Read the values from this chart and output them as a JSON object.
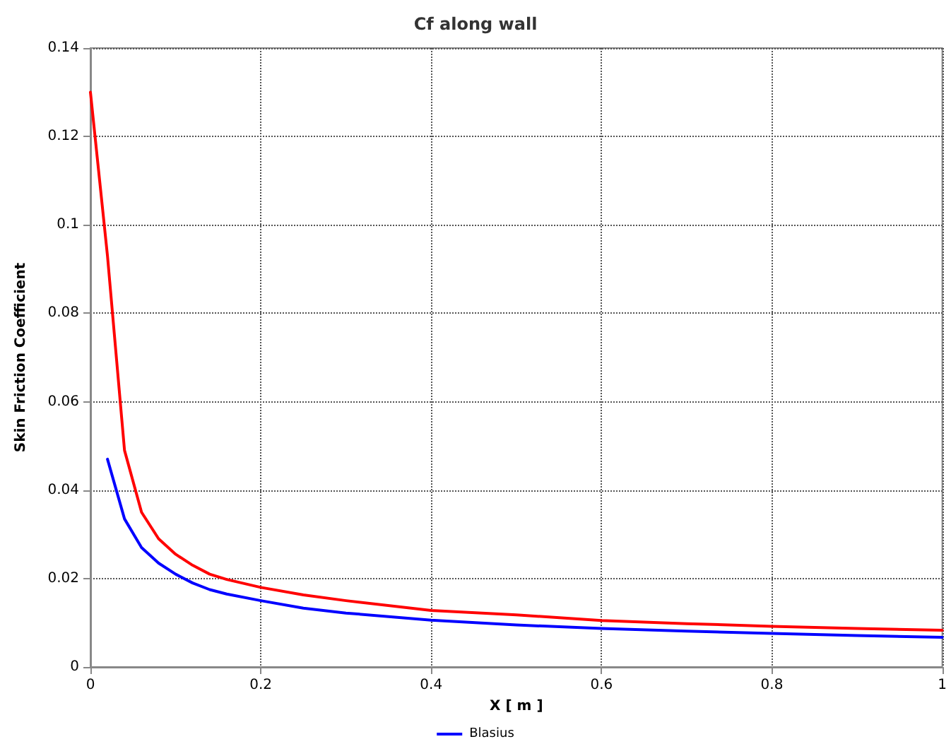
{
  "chart_data": {
    "type": "line",
    "title": "Cf along wall",
    "xlabel": "X [ m ]",
    "ylabel": "Skin Friction Coefficient",
    "series": [
      {
        "color": "#ff0000",
        "x": [
          0,
          0.02,
          0.04,
          0.06,
          0.08,
          0.1,
          0.12,
          0.14,
          0.16,
          0.2,
          0.25,
          0.3,
          0.4,
          0.5,
          0.6,
          0.7,
          0.8,
          0.9,
          1.0
        ],
        "values": [
          0.13,
          0.093,
          0.049,
          0.035,
          0.029,
          0.0255,
          0.023,
          0.021,
          0.0198,
          0.018,
          0.0163,
          0.015,
          0.0128,
          0.0118,
          0.0105,
          0.0098,
          0.0092,
          0.0087,
          0.0083
        ]
      },
      {
        "name": "Blasius",
        "color": "#0000ff",
        "x": [
          0.02,
          0.04,
          0.06,
          0.08,
          0.1,
          0.12,
          0.14,
          0.16,
          0.2,
          0.25,
          0.3,
          0.4,
          0.5,
          0.6,
          0.7,
          0.8,
          0.9,
          1.0
        ],
        "values": [
          0.047,
          0.0335,
          0.027,
          0.0235,
          0.021,
          0.019,
          0.0175,
          0.0165,
          0.015,
          0.0133,
          0.0122,
          0.0106,
          0.0095,
          0.0087,
          0.0081,
          0.0076,
          0.0071,
          0.0067
        ]
      }
    ],
    "xlim": [
      0,
      1
    ],
    "xticks": [
      0,
      0.2,
      0.4,
      0.6,
      0.8,
      1
    ],
    "ylim": [
      0,
      0.14
    ],
    "yticks": [
      0,
      0.02,
      0.04,
      0.06,
      0.08,
      0.1,
      0.12,
      0.14
    ],
    "grid": true,
    "legend": "bottom",
    "marker": "none",
    "line_style": "solid"
  }
}
